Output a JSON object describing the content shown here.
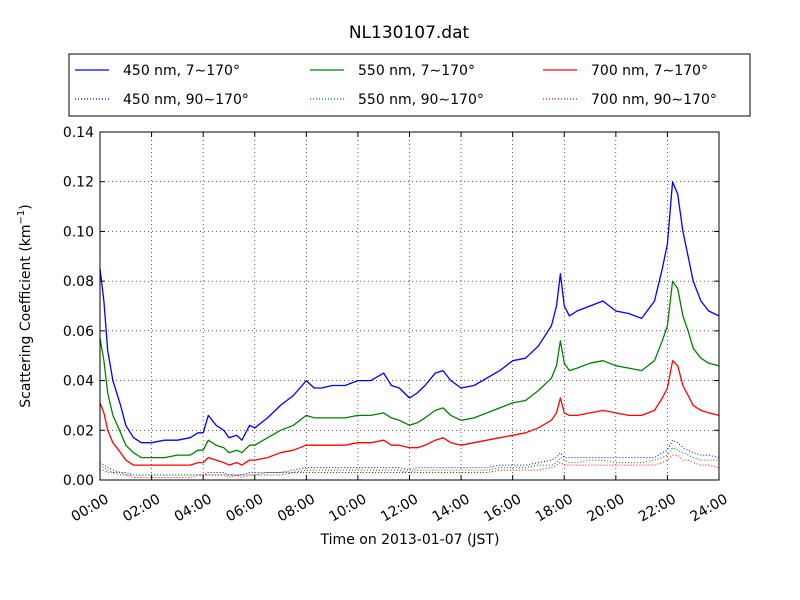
{
  "chart_data": {
    "type": "line",
    "title": "NL130107.dat",
    "xlabel": "Time on 2013-01-07 (JST)",
    "ylabel_parts": {
      "pre": "Scattering Coefficient (km",
      "sup": "−1",
      "post": ")"
    },
    "xlim": [
      0,
      24
    ],
    "ylim": [
      0,
      0.14
    ],
    "x_ticks": [
      0,
      2,
      4,
      6,
      8,
      10,
      12,
      14,
      16,
      18,
      20,
      22,
      24
    ],
    "x_tick_labels": [
      "00:00",
      "02:00",
      "04:00",
      "06:00",
      "08:00",
      "10:00",
      "12:00",
      "14:00",
      "16:00",
      "18:00",
      "20:00",
      "22:00",
      "24:00"
    ],
    "y_ticks": [
      0,
      0.02,
      0.04,
      0.06,
      0.08,
      0.1,
      0.12,
      0.14
    ],
    "y_tick_labels": [
      "0.00",
      "0.02",
      "0.04",
      "0.06",
      "0.08",
      "0.10",
      "0.12",
      "0.14"
    ],
    "grid": true,
    "legend_position": "top",
    "x": [
      0,
      0.15,
      0.3,
      0.5,
      0.8,
      1.0,
      1.3,
      1.6,
      2.0,
      2.5,
      3.0,
      3.5,
      3.8,
      4.0,
      4.2,
      4.5,
      4.8,
      5.0,
      5.3,
      5.5,
      5.8,
      6.0,
      6.5,
      7.0,
      7.5,
      8.0,
      8.3,
      8.6,
      9.0,
      9.5,
      10.0,
      10.5,
      11.0,
      11.3,
      11.6,
      12.0,
      12.3,
      12.6,
      13.0,
      13.3,
      13.6,
      14.0,
      14.5,
      15.0,
      15.5,
      16.0,
      16.5,
      17.0,
      17.5,
      17.7,
      17.85,
      18.0,
      18.2,
      18.5,
      19.0,
      19.5,
      20.0,
      20.5,
      21.0,
      21.5,
      21.8,
      22.0,
      22.2,
      22.4,
      22.6,
      22.8,
      23.0,
      23.3,
      23.6,
      24.0
    ],
    "series": [
      {
        "name": "450 nm, 7∼170°",
        "color": "#0000ff",
        "style": "solid",
        "values": [
          0.085,
          0.072,
          0.052,
          0.04,
          0.03,
          0.022,
          0.017,
          0.015,
          0.015,
          0.016,
          0.016,
          0.017,
          0.019,
          0.019,
          0.026,
          0.022,
          0.02,
          0.017,
          0.018,
          0.016,
          0.022,
          0.021,
          0.025,
          0.03,
          0.034,
          0.04,
          0.037,
          0.037,
          0.038,
          0.038,
          0.04,
          0.04,
          0.043,
          0.038,
          0.037,
          0.033,
          0.035,
          0.038,
          0.043,
          0.044,
          0.04,
          0.037,
          0.038,
          0.041,
          0.044,
          0.048,
          0.049,
          0.054,
          0.062,
          0.07,
          0.083,
          0.07,
          0.066,
          0.068,
          0.07,
          0.072,
          0.068,
          0.067,
          0.065,
          0.072,
          0.085,
          0.095,
          0.12,
          0.115,
          0.1,
          0.09,
          0.08,
          0.072,
          0.068,
          0.066
        ]
      },
      {
        "name": "550 nm, 7∼170°",
        "color": "#008000",
        "style": "solid",
        "values": [
          0.057,
          0.048,
          0.035,
          0.026,
          0.019,
          0.014,
          0.011,
          0.009,
          0.009,
          0.009,
          0.01,
          0.01,
          0.012,
          0.012,
          0.016,
          0.014,
          0.013,
          0.011,
          0.012,
          0.011,
          0.014,
          0.014,
          0.017,
          0.02,
          0.022,
          0.026,
          0.025,
          0.025,
          0.025,
          0.025,
          0.026,
          0.026,
          0.027,
          0.025,
          0.024,
          0.022,
          0.023,
          0.025,
          0.028,
          0.029,
          0.026,
          0.024,
          0.025,
          0.027,
          0.029,
          0.031,
          0.032,
          0.036,
          0.041,
          0.046,
          0.056,
          0.047,
          0.044,
          0.045,
          0.047,
          0.048,
          0.046,
          0.045,
          0.044,
          0.048,
          0.056,
          0.062,
          0.08,
          0.077,
          0.066,
          0.06,
          0.053,
          0.049,
          0.047,
          0.046
        ]
      },
      {
        "name": "700 nm, 7∼170°",
        "color": "#ff0000",
        "style": "solid",
        "values": [
          0.031,
          0.027,
          0.02,
          0.015,
          0.011,
          0.008,
          0.006,
          0.006,
          0.006,
          0.006,
          0.006,
          0.006,
          0.007,
          0.007,
          0.009,
          0.008,
          0.007,
          0.006,
          0.007,
          0.006,
          0.008,
          0.008,
          0.009,
          0.011,
          0.012,
          0.014,
          0.014,
          0.014,
          0.014,
          0.014,
          0.015,
          0.015,
          0.016,
          0.014,
          0.014,
          0.013,
          0.013,
          0.014,
          0.016,
          0.017,
          0.015,
          0.014,
          0.015,
          0.016,
          0.017,
          0.018,
          0.019,
          0.021,
          0.024,
          0.027,
          0.033,
          0.027,
          0.026,
          0.026,
          0.027,
          0.028,
          0.027,
          0.026,
          0.026,
          0.028,
          0.033,
          0.037,
          0.048,
          0.046,
          0.038,
          0.034,
          0.03,
          0.028,
          0.027,
          0.026
        ]
      },
      {
        "name": "450 nm, 90∼170°",
        "color": "#0000ff",
        "style": "dotted",
        "values": [
          0.007,
          0.006,
          0.005,
          0.004,
          0.003,
          0.003,
          0.002,
          0.002,
          0.002,
          0.002,
          0.002,
          0.002,
          0.002,
          0.002,
          0.003,
          0.003,
          0.003,
          0.002,
          0.002,
          0.002,
          0.003,
          0.003,
          0.003,
          0.003,
          0.004,
          0.005,
          0.005,
          0.005,
          0.005,
          0.005,
          0.005,
          0.005,
          0.005,
          0.005,
          0.005,
          0.004,
          0.005,
          0.005,
          0.005,
          0.005,
          0.005,
          0.005,
          0.005,
          0.005,
          0.006,
          0.006,
          0.006,
          0.007,
          0.008,
          0.009,
          0.011,
          0.009,
          0.009,
          0.009,
          0.009,
          0.009,
          0.009,
          0.009,
          0.009,
          0.009,
          0.011,
          0.012,
          0.016,
          0.015,
          0.013,
          0.012,
          0.011,
          0.01,
          0.01,
          0.009
        ]
      },
      {
        "name": "550 nm, 90∼170°",
        "color": "#008000",
        "style": "dotted",
        "values": [
          0.006,
          0.005,
          0.004,
          0.003,
          0.003,
          0.002,
          0.002,
          0.002,
          0.002,
          0.002,
          0.002,
          0.002,
          0.002,
          0.002,
          0.002,
          0.002,
          0.002,
          0.002,
          0.002,
          0.002,
          0.002,
          0.002,
          0.003,
          0.003,
          0.003,
          0.004,
          0.004,
          0.004,
          0.004,
          0.004,
          0.004,
          0.004,
          0.004,
          0.004,
          0.004,
          0.003,
          0.004,
          0.004,
          0.004,
          0.004,
          0.004,
          0.004,
          0.004,
          0.004,
          0.005,
          0.005,
          0.005,
          0.006,
          0.006,
          0.007,
          0.009,
          0.008,
          0.007,
          0.007,
          0.008,
          0.008,
          0.007,
          0.007,
          0.007,
          0.008,
          0.009,
          0.01,
          0.013,
          0.012,
          0.011,
          0.01,
          0.009,
          0.008,
          0.008,
          0.008
        ]
      },
      {
        "name": "700 nm, 90∼170°",
        "color": "#ff0000",
        "style": "dotted",
        "values": [
          0.004,
          0.004,
          0.003,
          0.003,
          0.002,
          0.002,
          0.001,
          0.001,
          0.001,
          0.001,
          0.001,
          0.001,
          0.002,
          0.002,
          0.002,
          0.002,
          0.002,
          0.001,
          0.002,
          0.001,
          0.002,
          0.002,
          0.002,
          0.002,
          0.003,
          0.003,
          0.003,
          0.003,
          0.003,
          0.003,
          0.003,
          0.003,
          0.003,
          0.003,
          0.003,
          0.003,
          0.003,
          0.003,
          0.003,
          0.003,
          0.003,
          0.003,
          0.003,
          0.003,
          0.004,
          0.004,
          0.004,
          0.004,
          0.005,
          0.006,
          0.007,
          0.006,
          0.006,
          0.006,
          0.006,
          0.006,
          0.006,
          0.006,
          0.006,
          0.006,
          0.007,
          0.008,
          0.01,
          0.01,
          0.008,
          0.008,
          0.007,
          0.006,
          0.006,
          0.005
        ]
      }
    ]
  }
}
